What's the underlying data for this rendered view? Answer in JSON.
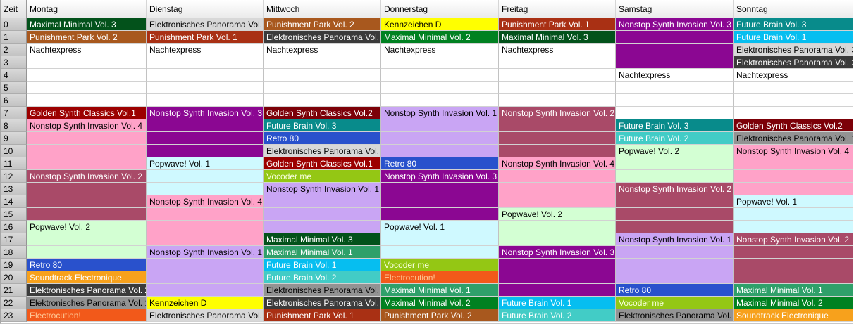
{
  "header": {
    "time_label": "Zeit"
  },
  "hours": [
    "0",
    "1",
    "2",
    "3",
    "4",
    "5",
    "6",
    "7",
    "8",
    "9",
    "10",
    "11",
    "12",
    "13",
    "14",
    "15",
    "16",
    "17",
    "18",
    "19",
    "20",
    "21",
    "22",
    "23"
  ],
  "programs": {
    "mm1": {
      "label": "Maximal Minimal Vol. 1",
      "bg": "#2FA06A",
      "fg": "#FFFFFF"
    },
    "mm2": {
      "label": "Maximal Minimal Vol. 2",
      "bg": "#008121",
      "fg": "#FFFFFF"
    },
    "mm3": {
      "label": "Maximal Minimal Vol. 3",
      "bg": "#03521B",
      "fg": "#FFFFFF"
    },
    "pp1": {
      "label": "Punishment Park Vol. 1",
      "bg": "#A93014",
      "fg": "#FFFFFF"
    },
    "pp2": {
      "label": "Punishment Park Vol. 2",
      "bg": "#A8581E",
      "fg": "#FFFFFF"
    },
    "nacht": {
      "label": "Nachtexpress",
      "bg": "#FFFFFF",
      "fg": "#000000"
    },
    "ep1": {
      "label": "Elektronisches Panorama Vol. 1",
      "bg": "#939393",
      "fg": "#000000"
    },
    "ep2": {
      "label": "Elektronisches Panorama Vol. 2",
      "bg": "#3B3B3B",
      "fg": "#FFFFFF"
    },
    "ep3": {
      "label": "Elektronisches Panorama Vol. 3",
      "bg": "#D8D8D8",
      "fg": "#000000"
    },
    "gsc1": {
      "label": "Golden Synth Classics Vol.1",
      "bg": "#9C0000",
      "fg": "#FFFFFF"
    },
    "gsc2": {
      "label": "Golden Synth Classics Vol.2",
      "bg": "#7C0008",
      "fg": "#FFFFFF"
    },
    "nsi1": {
      "label": "Nonstop Synth Invasion Vol. 1",
      "bg": "#C9A5F4",
      "fg": "#000000"
    },
    "nsi2": {
      "label": "Nonstop Synth Invasion Vol. 2",
      "bg": "#A94A68",
      "fg": "#FFFFFF"
    },
    "nsi3": {
      "label": "Nonstop Synth Invasion Vol. 3",
      "bg": "#8B0792",
      "fg": "#FFFFFF"
    },
    "nsi4": {
      "label": "Nonstop Synth Invasion Vol. 4",
      "bg": "#FFA2C8",
      "fg": "#000000"
    },
    "pw1": {
      "label": "Popwave! Vol. 1",
      "bg": "#CFF9FF",
      "fg": "#000000"
    },
    "pw2": {
      "label": "Popwave! Vol. 2",
      "bg": "#D3FFD3",
      "fg": "#000000"
    },
    "retro": {
      "label": "Retro 80",
      "bg": "#2951CC",
      "fg": "#FFFFFF"
    },
    "stelec": {
      "label": "Soundtrack Electronique",
      "bg": "#F7A11C",
      "fg": "#FFFFFF"
    },
    "electro": {
      "label": "Electrocution!",
      "bg": "#F2591A",
      "fg": "#FFC896"
    },
    "kennd": {
      "label": "Kennzeichen D",
      "bg": "#FFFF00",
      "fg": "#000000"
    },
    "fb1": {
      "label": "Future Brain Vol. 1",
      "bg": "#06BEF0",
      "fg": "#FFFFFF"
    },
    "fb2": {
      "label": "Future Brain Vol. 2",
      "bg": "#42CCC6",
      "fg": "#FFFFFF"
    },
    "fb3": {
      "label": "Future Brain Vol. 3",
      "bg": "#088B8B",
      "fg": "#FFFFFF"
    },
    "vocoder": {
      "label": "Vocoder me",
      "bg": "#94C714",
      "fg": "#F8FFDC"
    }
  },
  "days": [
    {
      "label": "Montag",
      "events": [
        {
          "hour": 0,
          "span": 1,
          "program": "mm3"
        },
        {
          "hour": 1,
          "span": 1,
          "program": "pp2"
        },
        {
          "hour": 2,
          "span": 1,
          "program": "nacht"
        },
        {
          "hour": 7,
          "span": 1,
          "program": "gsc1"
        },
        {
          "hour": 8,
          "span": 4,
          "program": "nsi4"
        },
        {
          "hour": 12,
          "span": 4,
          "program": "nsi2"
        },
        {
          "hour": 16,
          "span": 3,
          "program": "pw2"
        },
        {
          "hour": 19,
          "span": 1,
          "program": "retro"
        },
        {
          "hour": 20,
          "span": 1,
          "program": "stelec"
        },
        {
          "hour": 21,
          "span": 1,
          "program": "ep2"
        },
        {
          "hour": 22,
          "span": 1,
          "program": "ep1"
        },
        {
          "hour": 23,
          "span": 1,
          "program": "electro"
        }
      ]
    },
    {
      "label": "Dienstag",
      "events": [
        {
          "hour": 0,
          "span": 1,
          "program": "ep3"
        },
        {
          "hour": 1,
          "span": 1,
          "program": "pp1"
        },
        {
          "hour": 2,
          "span": 1,
          "program": "nacht"
        },
        {
          "hour": 7,
          "span": 4,
          "program": "nsi3"
        },
        {
          "hour": 11,
          "span": 3,
          "program": "pw1"
        },
        {
          "hour": 14,
          "span": 4,
          "program": "nsi4"
        },
        {
          "hour": 18,
          "span": 4,
          "program": "nsi1"
        },
        {
          "hour": 22,
          "span": 1,
          "program": "kennd"
        },
        {
          "hour": 23,
          "span": 1,
          "program": "ep3"
        }
      ]
    },
    {
      "label": "Mittwoch",
      "events": [
        {
          "hour": 0,
          "span": 1,
          "program": "pp2"
        },
        {
          "hour": 1,
          "span": 1,
          "program": "ep2"
        },
        {
          "hour": 2,
          "span": 1,
          "program": "nacht"
        },
        {
          "hour": 7,
          "span": 1,
          "program": "gsc2"
        },
        {
          "hour": 8,
          "span": 1,
          "program": "fb3"
        },
        {
          "hour": 9,
          "span": 1,
          "program": "retro"
        },
        {
          "hour": 10,
          "span": 1,
          "program": "ep3"
        },
        {
          "hour": 11,
          "span": 1,
          "program": "gsc1"
        },
        {
          "hour": 12,
          "span": 1,
          "program": "vocoder"
        },
        {
          "hour": 13,
          "span": 4,
          "program": "nsi1"
        },
        {
          "hour": 17,
          "span": 1,
          "program": "mm3"
        },
        {
          "hour": 18,
          "span": 1,
          "program": "mm1"
        },
        {
          "hour": 19,
          "span": 1,
          "program": "fb1"
        },
        {
          "hour": 20,
          "span": 1,
          "program": "fb2"
        },
        {
          "hour": 21,
          "span": 1,
          "program": "ep1"
        },
        {
          "hour": 22,
          "span": 1,
          "program": "ep2"
        },
        {
          "hour": 23,
          "span": 1,
          "program": "pp1"
        }
      ]
    },
    {
      "label": "Donnerstag",
      "events": [
        {
          "hour": 0,
          "span": 1,
          "program": "kennd"
        },
        {
          "hour": 1,
          "span": 1,
          "program": "mm2"
        },
        {
          "hour": 2,
          "span": 1,
          "program": "nacht"
        },
        {
          "hour": 7,
          "span": 4,
          "program": "nsi1"
        },
        {
          "hour": 11,
          "span": 1,
          "program": "retro"
        },
        {
          "hour": 12,
          "span": 4,
          "program": "nsi3"
        },
        {
          "hour": 16,
          "span": 3,
          "program": "pw1"
        },
        {
          "hour": 19,
          "span": 1,
          "program": "vocoder"
        },
        {
          "hour": 20,
          "span": 1,
          "program": "electro"
        },
        {
          "hour": 21,
          "span": 1,
          "program": "mm1"
        },
        {
          "hour": 22,
          "span": 1,
          "program": "mm2"
        },
        {
          "hour": 23,
          "span": 1,
          "program": "pp2"
        }
      ]
    },
    {
      "label": "Freitag",
      "events": [
        {
          "hour": 0,
          "span": 1,
          "program": "pp1"
        },
        {
          "hour": 1,
          "span": 1,
          "program": "mm3"
        },
        {
          "hour": 2,
          "span": 1,
          "program": "nacht"
        },
        {
          "hour": 7,
          "span": 4,
          "program": "nsi2"
        },
        {
          "hour": 11,
          "span": 4,
          "program": "nsi4"
        },
        {
          "hour": 15,
          "span": 3,
          "program": "pw2"
        },
        {
          "hour": 18,
          "span": 4,
          "program": "nsi3"
        },
        {
          "hour": 22,
          "span": 1,
          "program": "fb1"
        },
        {
          "hour": 23,
          "span": 1,
          "program": "fb2"
        }
      ]
    },
    {
      "label": "Samstag",
      "events": [
        {
          "hour": 0,
          "span": 4,
          "program": "nsi3"
        },
        {
          "hour": 4,
          "span": 1,
          "program": "nacht"
        },
        {
          "hour": 8,
          "span": 1,
          "program": "fb3"
        },
        {
          "hour": 9,
          "span": 1,
          "program": "fb2"
        },
        {
          "hour": 10,
          "span": 3,
          "program": "pw2"
        },
        {
          "hour": 13,
          "span": 4,
          "program": "nsi2"
        },
        {
          "hour": 17,
          "span": 4,
          "program": "nsi1"
        },
        {
          "hour": 21,
          "span": 1,
          "program": "retro"
        },
        {
          "hour": 22,
          "span": 1,
          "program": "vocoder"
        },
        {
          "hour": 23,
          "span": 1,
          "program": "ep1"
        }
      ]
    },
    {
      "label": "Sonntag",
      "events": [
        {
          "hour": 0,
          "span": 1,
          "program": "fb3"
        },
        {
          "hour": 1,
          "span": 1,
          "program": "fb1"
        },
        {
          "hour": 2,
          "span": 1,
          "program": "ep3"
        },
        {
          "hour": 3,
          "span": 1,
          "program": "ep2"
        },
        {
          "hour": 4,
          "span": 1,
          "program": "nacht"
        },
        {
          "hour": 8,
          "span": 1,
          "program": "gsc2"
        },
        {
          "hour": 9,
          "span": 1,
          "program": "ep1"
        },
        {
          "hour": 10,
          "span": 4,
          "program": "nsi4"
        },
        {
          "hour": 14,
          "span": 3,
          "program": "pw1"
        },
        {
          "hour": 17,
          "span": 4,
          "program": "nsi2"
        },
        {
          "hour": 21,
          "span": 1,
          "program": "mm1"
        },
        {
          "hour": 22,
          "span": 1,
          "program": "mm2"
        },
        {
          "hour": 23,
          "span": 1,
          "program": "stelec"
        }
      ]
    }
  ]
}
